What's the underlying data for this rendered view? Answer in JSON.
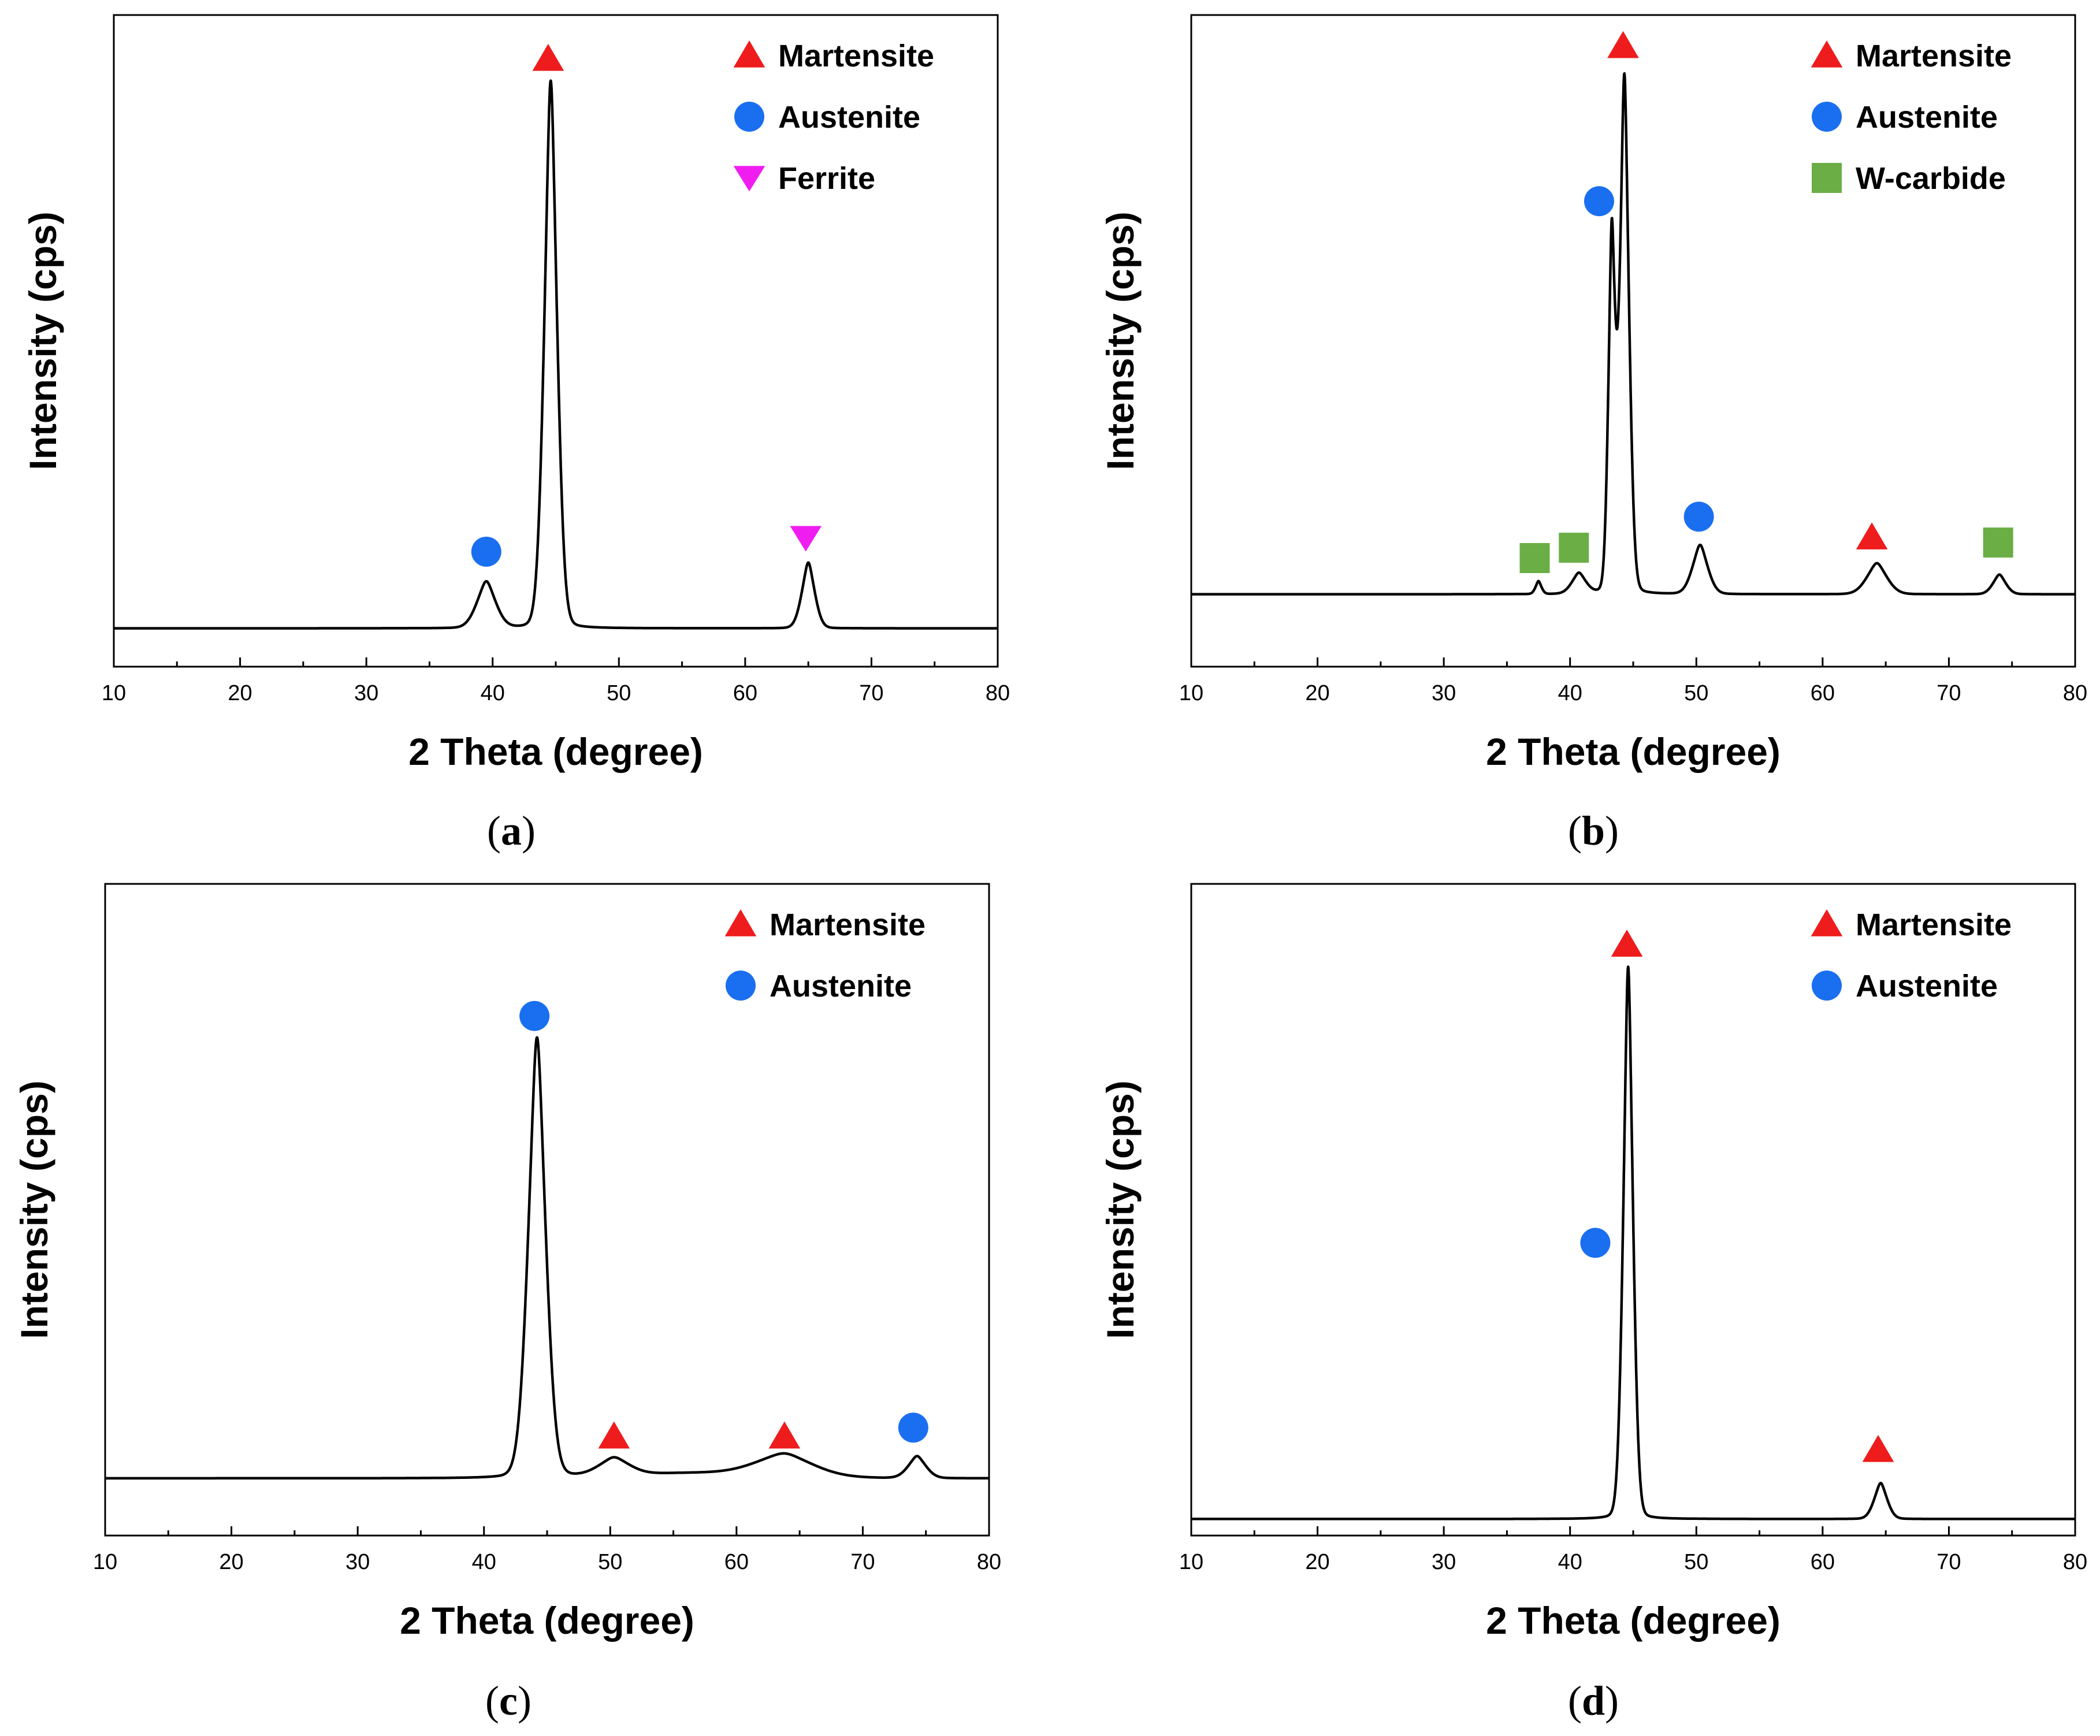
{
  "colors": {
    "martensite": "#ee1c1c",
    "austenite": "#1a6ff0",
    "ferrite": "#f01df0",
    "w_carbide": "#6aae45",
    "line": "#000000"
  },
  "chart_data": [
    {
      "panel": "a",
      "caption_letter": "a",
      "type": "line",
      "xlabel": "2 Theta (degree)",
      "ylabel": "Intensity (cps)",
      "xlim": [
        10,
        80
      ],
      "xticks": [
        10,
        20,
        30,
        40,
        50,
        60,
        70,
        80
      ],
      "yticks_shown": false,
      "grid": false,
      "legend_position": "top-right",
      "legend": [
        {
          "label": "Martensite",
          "marker": "triangle-up"
        },
        {
          "label": "Austenite",
          "marker": "circle"
        },
        {
          "label": "Ferrite",
          "marker": "triangle-down"
        }
      ],
      "baseline": 0.0,
      "peaks": [
        {
          "x": 39.5,
          "height": 0.085,
          "width": 0.8
        },
        {
          "x": 44.6,
          "height": 1.0,
          "width": 0.55
        },
        {
          "x": 65.0,
          "height": 0.12,
          "width": 0.55
        }
      ],
      "markers": [
        {
          "phase": "Austenite",
          "marker": "circle",
          "x": 39.5,
          "y": 0.14
        },
        {
          "phase": "Martensite",
          "marker": "triangle-up",
          "x": 44.4,
          "y": 1.04
        },
        {
          "phase": "Ferrite",
          "marker": "triangle-down",
          "x": 64.8,
          "y": 0.165
        }
      ],
      "series": [
        {
          "x": [
            10,
            36,
            38,
            39.5,
            41,
            43,
            44,
            44.6,
            45.2,
            46,
            63,
            64.5,
            65,
            65.5,
            67,
            80
          ],
          "y": [
            0,
            0,
            0.01,
            0.085,
            0.01,
            0.01,
            0.3,
            1.0,
            0.3,
            0.01,
            0.0,
            0.06,
            0.12,
            0.06,
            0.0,
            0
          ]
        }
      ],
      "ylim": [
        -0.07,
        1.12
      ]
    },
    {
      "panel": "b",
      "caption_letter": "b",
      "type": "line",
      "xlabel": "2 Theta (degree)",
      "ylabel": "Intensity (cps)",
      "xlim": [
        10,
        80
      ],
      "xticks": [
        10,
        20,
        30,
        40,
        50,
        60,
        70,
        80
      ],
      "yticks_shown": false,
      "grid": false,
      "legend_position": "top-right",
      "legend": [
        {
          "label": "Martensite",
          "marker": "triangle-up"
        },
        {
          "label": "Austenite",
          "marker": "circle"
        },
        {
          "label": "W-carbide",
          "marker": "square"
        }
      ],
      "baseline": 0.0,
      "peaks": [
        {
          "x": 37.5,
          "height": 0.025,
          "width": 0.25
        },
        {
          "x": 40.7,
          "height": 0.04,
          "width": 0.6
        },
        {
          "x": 43.3,
          "height": 0.68,
          "width": 0.3
        },
        {
          "x": 44.3,
          "height": 1.0,
          "width": 0.4
        },
        {
          "x": 50.3,
          "height": 0.095,
          "width": 0.65
        },
        {
          "x": 64.3,
          "height": 0.06,
          "width": 0.85
        },
        {
          "x": 74.0,
          "height": 0.038,
          "width": 0.55
        }
      ],
      "markers": [
        {
          "phase": "W-carbide",
          "marker": "square",
          "x": 37.2,
          "y": 0.07
        },
        {
          "phase": "W-carbide",
          "marker": "square",
          "x": 40.3,
          "y": 0.09
        },
        {
          "phase": "Austenite",
          "marker": "circle",
          "x": 42.3,
          "y": 0.76
        },
        {
          "phase": "Martensite",
          "marker": "triangle-up",
          "x": 44.2,
          "y": 1.06
        },
        {
          "phase": "Austenite",
          "marker": "circle",
          "x": 50.2,
          "y": 0.15
        },
        {
          "phase": "Martensite",
          "marker": "triangle-up",
          "x": 63.9,
          "y": 0.11
        },
        {
          "phase": "W-carbide",
          "marker": "square",
          "x": 73.9,
          "y": 0.1
        }
      ],
      "series": [
        {
          "x": [
            10,
            37,
            37.5,
            38,
            40.7,
            42.5,
            43.3,
            43.7,
            44.3,
            45.5,
            49,
            50.3,
            51.5,
            63,
            64.3,
            65.5,
            73.2,
            74,
            74.8,
            80
          ],
          "y": [
            0,
            0,
            0.025,
            0.005,
            0.04,
            0.1,
            0.68,
            0.58,
            1.0,
            0.03,
            0.005,
            0.095,
            0.005,
            0.005,
            0.06,
            0.005,
            0.0,
            0.038,
            0.0,
            0
          ]
        }
      ],
      "ylim": [
        -0.14,
        1.12
      ]
    },
    {
      "panel": "c",
      "caption_letter": "c",
      "type": "line",
      "xlabel": "2 Theta (degree)",
      "ylabel": "Intensity (cps)",
      "xlim": [
        10,
        80
      ],
      "xticks": [
        10,
        20,
        30,
        40,
        50,
        60,
        70,
        80
      ],
      "yticks_shown": false,
      "grid": false,
      "legend_position": "top-right",
      "legend": [
        {
          "label": "Martensite",
          "marker": "triangle-up"
        },
        {
          "label": "Austenite",
          "marker": "circle"
        }
      ],
      "baseline": 0.0,
      "peaks": [
        {
          "x": 44.2,
          "height": 1.0,
          "width": 0.75
        },
        {
          "x": 50.3,
          "height": 0.04,
          "width": 1.3
        },
        {
          "x": 63.8,
          "height": 0.05,
          "width": 2.4
        },
        {
          "x": 74.3,
          "height": 0.05,
          "width": 0.75
        }
      ],
      "markers": [
        {
          "phase": "Austenite",
          "marker": "circle",
          "x": 44.0,
          "y": 1.05
        },
        {
          "phase": "Martensite",
          "marker": "triangle-up",
          "x": 50.3,
          "y": 0.095
        },
        {
          "phase": "Martensite",
          "marker": "triangle-up",
          "x": 63.8,
          "y": 0.095
        },
        {
          "phase": "Austenite",
          "marker": "circle",
          "x": 74.0,
          "y": 0.115
        }
      ],
      "series": [
        {
          "x": [
            10,
            40,
            42,
            44.2,
            46,
            48,
            50.3,
            52,
            58,
            63.8,
            68,
            72,
            74.3,
            76,
            78,
            80
          ],
          "y": [
            0,
            0,
            0.05,
            1.0,
            0.05,
            0.01,
            0.04,
            0.01,
            0.01,
            0.05,
            0.01,
            0.01,
            0.05,
            0.01,
            0.0,
            0.05
          ]
        }
      ],
      "ylim": [
        -0.13,
        1.35
      ]
    },
    {
      "panel": "d",
      "caption_letter": "d",
      "type": "line",
      "xlabel": "2 Theta (degree)",
      "ylabel": "Intensity (cps)",
      "xlim": [
        10,
        80
      ],
      "xticks": [
        10,
        20,
        30,
        40,
        50,
        60,
        70,
        80
      ],
      "yticks_shown": false,
      "grid": false,
      "legend_position": "top-right",
      "legend": [
        {
          "label": "Martensite",
          "marker": "triangle-up"
        },
        {
          "label": "Austenite",
          "marker": "circle"
        }
      ],
      "baseline": 0.0,
      "peaks": [
        {
          "x": 44.6,
          "height": 1.0,
          "width": 0.42
        },
        {
          "x": 64.6,
          "height": 0.065,
          "width": 0.55
        }
      ],
      "markers": [
        {
          "phase": "Martensite",
          "marker": "triangle-up",
          "x": 44.5,
          "y": 1.04
        },
        {
          "phase": "Austenite",
          "marker": "circle",
          "x": 42.0,
          "y": 0.5
        },
        {
          "phase": "Martensite",
          "marker": "triangle-up",
          "x": 64.4,
          "y": 0.125
        }
      ],
      "series": [
        {
          "x": [
            10,
            43.5,
            44.6,
            45.7,
            63.5,
            64.6,
            65.7,
            80
          ],
          "y": [
            0,
            0,
            1.0,
            0,
            0,
            0.065,
            0,
            0
          ]
        }
      ],
      "ylim": [
        -0.03,
        1.15
      ]
    }
  ]
}
